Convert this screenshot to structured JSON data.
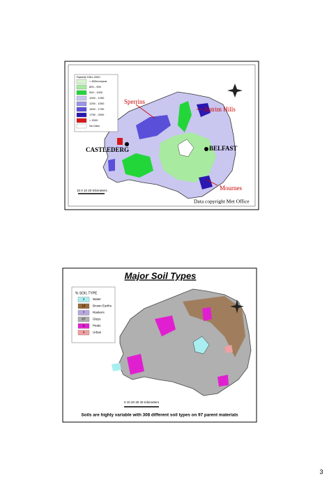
{
  "slides": [
    {
      "legend_title": "Rainfall 1961-2000",
      "legend": [
        {
          "label": "< 800mm/year",
          "color": "#d8f5d0"
        },
        {
          "label": "800 - 900",
          "color": "#a8eaa0"
        },
        {
          "label": "900 - 1000",
          "color": "#22d63a"
        },
        {
          "label": "1000 - 1250",
          "color": "#c9c6f0"
        },
        {
          "label": "1250 - 1500",
          "color": "#9b96e6"
        },
        {
          "label": "1500 - 1750",
          "color": "#5a4fd8"
        },
        {
          "label": "1750 - 2000",
          "color": "#2a18b0"
        },
        {
          "label": "> 2000",
          "color": "#d81818"
        },
        {
          "label": "No Data",
          "color": "#ffffff"
        }
      ],
      "places": [
        "Sperrins",
        "Antrim Hills",
        "CASTLEDERG",
        "BELFAST",
        "Mournes"
      ],
      "scale": "10  0  10  20 Kilometers",
      "copyright": "Data copyright Met Office"
    },
    {
      "title": "Major Soil Types",
      "legend_title": "% SOIL TYPE",
      "legend": [
        {
          "percent": 4,
          "label": "Water",
          "color": "#a8eef0"
        },
        {
          "percent": 15,
          "label": "Brown Earths",
          "color": "#9a6a3a"
        },
        {
          "percent": 7,
          "label": "Rankers",
          "color": "#b8a8e0"
        },
        {
          "percent": 67,
          "label": "Gleys",
          "color": "#b0b0b0"
        },
        {
          "percent": 3,
          "label": "Peats",
          "color": "#e020d0"
        },
        {
          "percent": 4,
          "label": "Urban",
          "color": "#f0a0a0"
        }
      ],
      "scale": "0  10  20  30  40 Kilometers",
      "caption": "Soils are highly variable with 308 different soil types on 97 parent materials"
    }
  ],
  "page_number": "3"
}
